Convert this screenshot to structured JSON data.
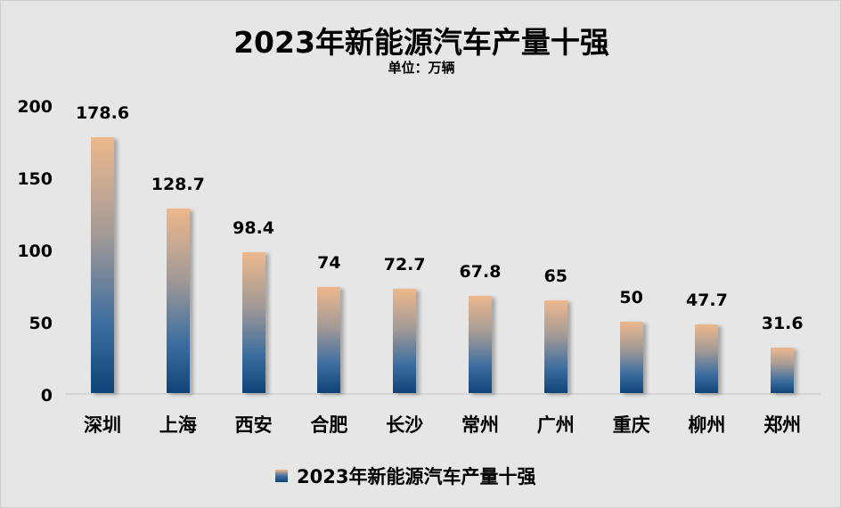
{
  "chart_data": {
    "type": "bar",
    "title": "2023年新能源汽车产量十强",
    "subtitle": "单位：万辆",
    "xlabel": "",
    "ylabel": "",
    "ylim": [
      0,
      200
    ],
    "yticks": [
      "0",
      "50",
      "100",
      "150",
      "200"
    ],
    "categories": [
      "深圳",
      "上海",
      "西安",
      "合肥",
      "长沙",
      "常州",
      "广州",
      "重庆",
      "柳州",
      "郑州"
    ],
    "series": [
      {
        "name": "2023年新能源汽车产量十强",
        "values": [
          178.6,
          128.7,
          98.4,
          74,
          72.7,
          67.8,
          65,
          50,
          47.7,
          31.6
        ],
        "labels": [
          "178.6",
          "128.7",
          "98.4",
          "74",
          "72.7",
          "67.8",
          "65",
          "50",
          "47.7",
          "31.6"
        ]
      }
    ],
    "grid": false,
    "legend_position": "bottom",
    "colors": {
      "gradient_top": "#edb88c",
      "gradient_mid": "#3f6fa0",
      "gradient_bottom": "#0f4478",
      "background": "#e6e6e6"
    }
  }
}
